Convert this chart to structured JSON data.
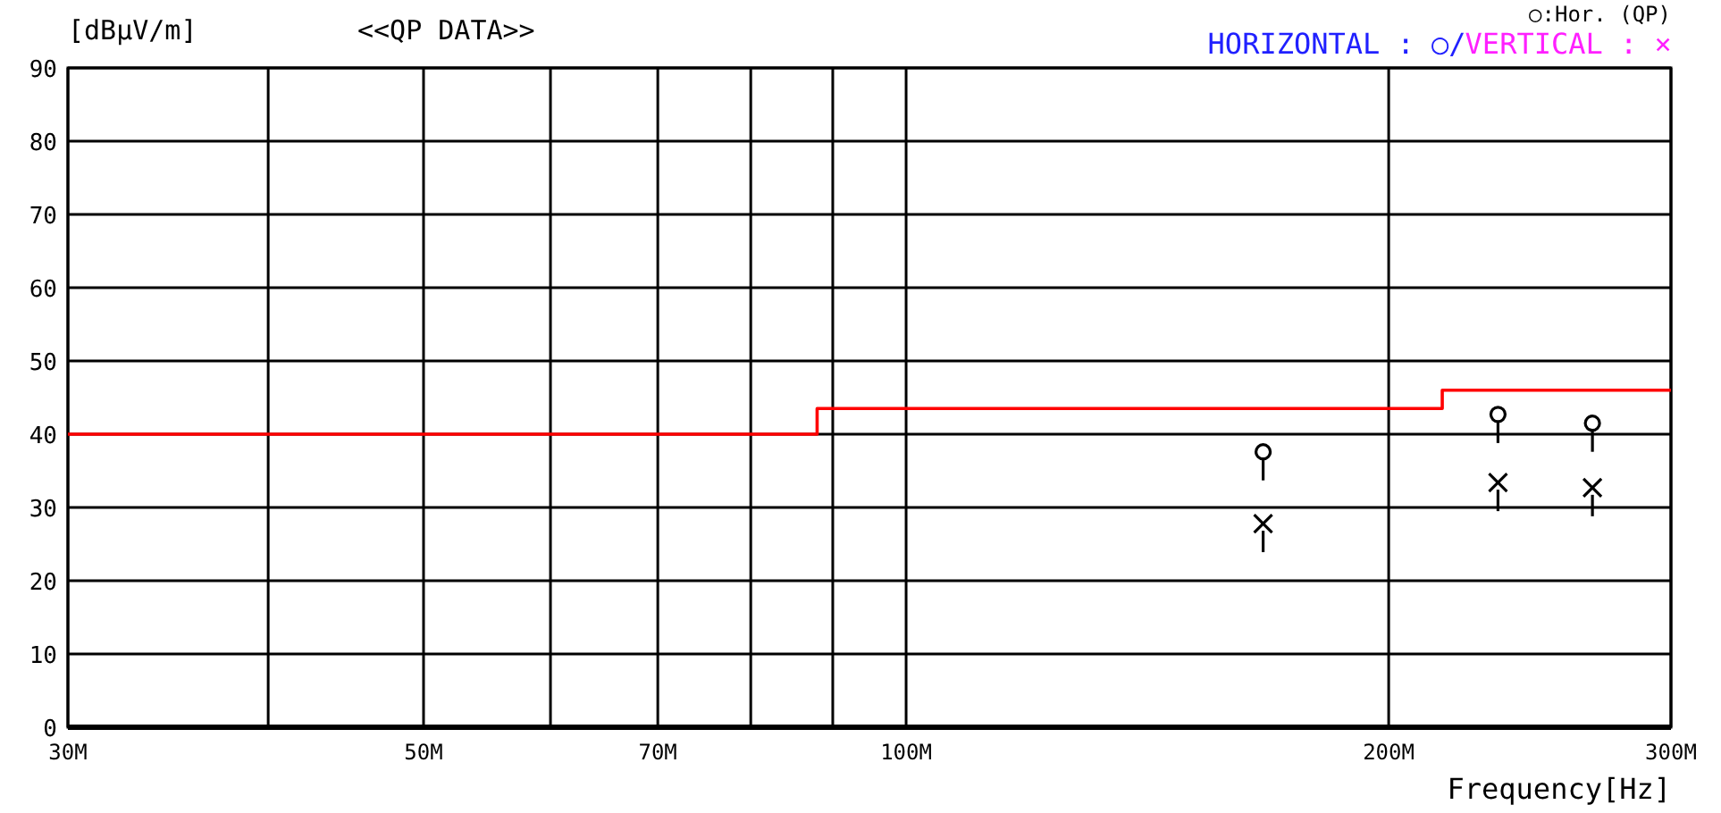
{
  "chart_data": {
    "type": "scatter",
    "title": "<<QP DATA>>",
    "ylabel": "[dBμV/m]",
    "xlabel": "Frequency[Hz]",
    "annotations": [
      "○:Hor. (QP)",
      "HORIZONTAL : ○/",
      "VERTICAL : ×"
    ],
    "log": "x",
    "grid": true,
    "xlim": [
      30,
      300
    ],
    "xticks": [
      {
        "value": 30,
        "label": "30M"
      },
      {
        "value": 40,
        "label": null
      },
      {
        "value": 50,
        "label": "50M"
      },
      {
        "value": 60,
        "label": null
      },
      {
        "value": 70,
        "label": "70M"
      },
      {
        "value": 80,
        "label": null
      },
      {
        "value": 90,
        "label": null
      },
      {
        "value": 100,
        "label": "100M"
      },
      {
        "value": 200,
        "label": "200M"
      },
      {
        "value": 300,
        "label": "300M"
      }
    ],
    "ylim": [
      0,
      90
    ],
    "yticks": [
      0,
      10,
      20,
      30,
      40,
      50,
      60,
      70,
      80,
      90
    ],
    "series": [
      {
        "type": "step",
        "color": "#ff0000",
        "x": [
          30,
          88,
          216,
          300
        ],
        "values": [
          40,
          43.5,
          46,
          46
        ]
      },
      {
        "marker": "circle",
        "color": "#000000",
        "x": [
          167,
          234,
          268
        ],
        "values": [
          37.6,
          42.7,
          41.5
        ]
      },
      {
        "marker": "cross",
        "color": "#000000",
        "x": [
          167,
          234,
          268
        ],
        "values": [
          27.8,
          33.4,
          32.7
        ]
      }
    ]
  }
}
